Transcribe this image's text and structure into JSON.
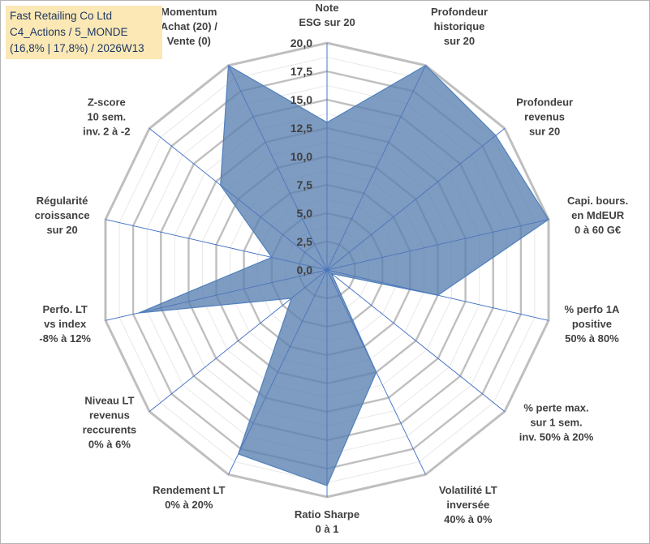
{
  "title_box": {
    "line1": "Fast Retailing Co Ltd",
    "line2": "C4_Actions / 5_MONDE",
    "line3": "(16,8% | 17,8%) / 2026W13"
  },
  "chart_data": {
    "type": "radar",
    "rmin": 0,
    "rmax": 20,
    "tick_step": 2.5,
    "ticks": [
      "0,0",
      "2,5",
      "5,0",
      "7,5",
      "10,0",
      "12,5",
      "15,0",
      "17,5",
      "20,0"
    ],
    "categories": [
      [
        "Note",
        "ESG sur 20"
      ],
      [
        "Profondeur",
        "historique",
        "sur 20"
      ],
      [
        "Profondeur",
        "revenus",
        "sur 20"
      ],
      [
        "Capi. bours.",
        "en MdEUR",
        "0 à 60 G€"
      ],
      [
        "% perfo 1A",
        "positive",
        "50% à 80%"
      ],
      [
        "% perte max.",
        "sur 1 sem.",
        "inv. 50% à 20%"
      ],
      [
        "Volatilité LT",
        "inversée",
        "40% à 0%"
      ],
      [
        "Ratio Sharpe",
        "0 à 1"
      ],
      [
        "Rendement LT",
        "0% à 20%"
      ],
      [
        "Niveau LT",
        "revenus",
        "reccurents",
        "0% à 6%"
      ],
      [
        "Perfo. LT",
        "vs index",
        "-8% à 12%"
      ],
      [
        "Régularité",
        "croissance",
        "sur 20"
      ],
      [
        "Z-score",
        "10 sem.",
        "inv. 2 à -2"
      ],
      [
        "Momentum",
        "Achat (20) /",
        "Vente (0)"
      ]
    ],
    "series": [
      {
        "name": "Fast Retailing Co Ltd",
        "values": [
          13,
          20,
          19,
          20,
          10,
          0.5,
          10,
          19,
          18,
          4,
          17,
          5,
          12,
          20
        ],
        "color": "#4f81bd",
        "fill": "#5a7fb0",
        "fill_opacity": 0.78
      }
    ],
    "grid_color": "#bfbfbf",
    "axis_color": "#4472c4"
  }
}
